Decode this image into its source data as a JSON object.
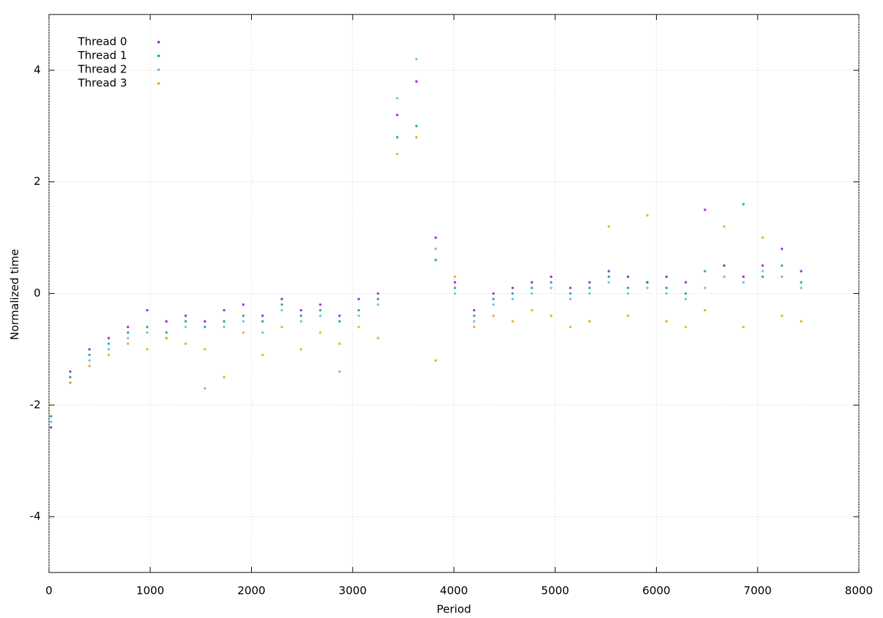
{
  "chart_data": {
    "type": "scatter",
    "x_label": "Period",
    "y_label": "Normalized time",
    "xlim": [
      0,
      8000
    ],
    "xticks": [
      0,
      1000,
      2000,
      3000,
      4000,
      5000,
      6000,
      7000,
      8000
    ],
    "ylim": [
      -5,
      5
    ],
    "yticks": [
      -4,
      -2,
      0,
      2,
      4
    ],
    "grid": true,
    "legend": "top-left",
    "x": [
      20,
      210,
      400,
      590,
      780,
      970,
      1160,
      1350,
      1540,
      1730,
      1920,
      2110,
      2300,
      2490,
      2680,
      2870,
      3060,
      3250,
      3440,
      3630,
      3820,
      4010,
      4200,
      4390,
      4580,
      4770,
      4960,
      5150,
      5340,
      5530,
      5720,
      5910,
      6100,
      6290,
      6480,
      6670,
      6860,
      7050,
      7240,
      7430
    ],
    "series": [
      {
        "name": "Thread 0",
        "color": "#9400d3",
        "values": [
          -2.4,
          -1.4,
          -1.0,
          -0.8,
          -0.6,
          -0.3,
          -0.5,
          -0.4,
          -0.5,
          -0.3,
          -0.2,
          -0.4,
          -0.1,
          -0.3,
          -0.2,
          -0.4,
          -0.1,
          0.0,
          3.2,
          3.8,
          1.0,
          0.2,
          -0.3,
          0.0,
          0.1,
          0.2,
          0.3,
          0.1,
          0.2,
          0.4,
          0.3,
          0.2,
          0.3,
          0.2,
          1.5,
          0.5,
          0.3,
          0.5,
          0.8,
          0.4
        ]
      },
      {
        "name": "Thread 1",
        "color": "#009e73",
        "values": [
          -2.2,
          -1.5,
          -1.1,
          -0.9,
          -0.7,
          -0.6,
          -0.7,
          -0.5,
          -0.6,
          -0.5,
          -0.4,
          -0.5,
          -0.2,
          -0.4,
          -0.3,
          -0.5,
          -0.3,
          -0.1,
          2.8,
          3.0,
          0.6,
          0.1,
          -0.4,
          -0.1,
          0.0,
          0.1,
          0.2,
          0.0,
          0.1,
          0.3,
          0.1,
          0.2,
          0.1,
          0.0,
          0.4,
          0.5,
          1.6,
          0.3,
          0.5,
          0.2
        ]
      },
      {
        "name": "Thread 2",
        "color": "#56b4e9",
        "values": [
          -2.3,
          -1.6,
          -1.2,
          -1.0,
          -0.8,
          -0.7,
          -0.8,
          -0.6,
          -1.7,
          -0.6,
          -0.5,
          -0.7,
          -0.3,
          -0.5,
          -0.4,
          -1.4,
          -0.4,
          -0.2,
          3.5,
          4.2,
          0.8,
          0.0,
          -0.5,
          -0.2,
          -0.1,
          0.0,
          0.1,
          -0.1,
          0.0,
          0.2,
          0.0,
          0.1,
          0.0,
          -0.1,
          0.1,
          0.3,
          0.2,
          0.4,
          0.3,
          0.1
        ]
      },
      {
        "name": "Thread 3",
        "color": "#e69f00",
        "values": [
          -2.0,
          -1.6,
          -1.3,
          -1.1,
          -0.9,
          -1.0,
          -0.8,
          -0.9,
          -1.0,
          -1.5,
          -0.7,
          -1.1,
          -0.6,
          -1.0,
          -0.7,
          -0.9,
          -0.6,
          -0.8,
          2.5,
          2.8,
          -1.2,
          0.3,
          -0.6,
          -0.4,
          -0.5,
          -0.3,
          -0.4,
          -0.6,
          -0.5,
          1.2,
          -0.4,
          1.4,
          -0.5,
          -0.6,
          -0.3,
          1.2,
          -0.6,
          1.0,
          -0.4,
          -0.5
        ]
      }
    ]
  }
}
